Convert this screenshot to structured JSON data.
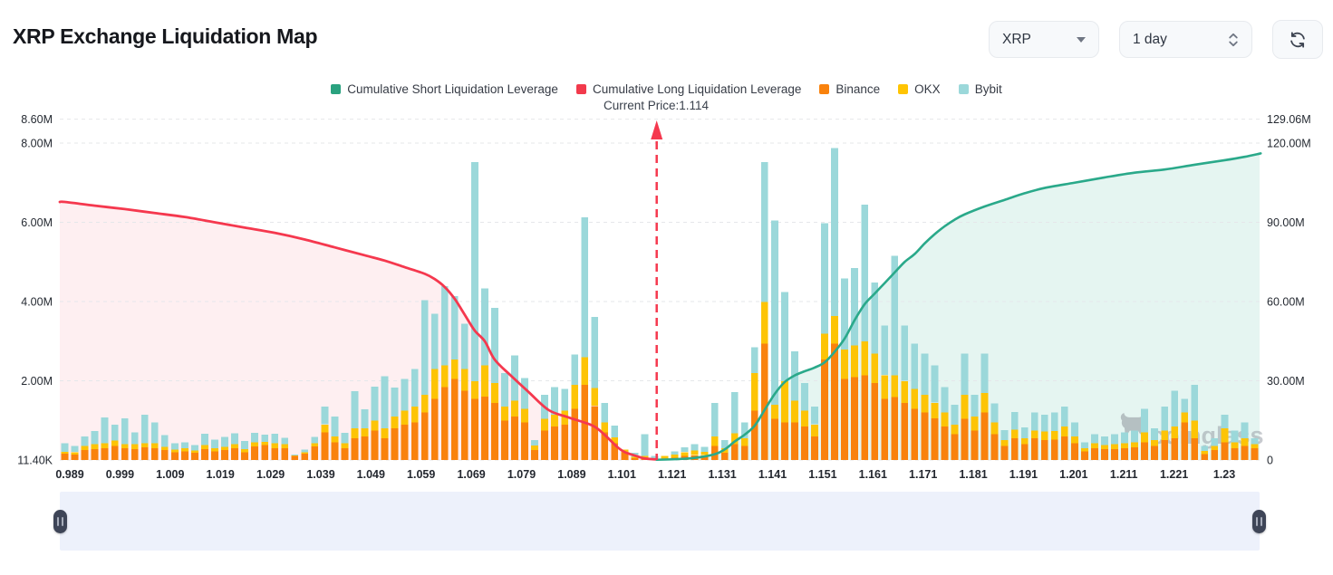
{
  "header": {
    "title": "XRP Exchange Liquidation Map",
    "coin_select": "XRP",
    "interval_select": "1 day"
  },
  "legend": [
    {
      "label": "Cumulative Short Liquidation Leverage",
      "color": "#2aa27f"
    },
    {
      "label": "Cumulative Long Liquidation Leverage",
      "color": "#f23a4c"
    },
    {
      "label": "Binance",
      "color": "#f9820d"
    },
    {
      "label": "OKX",
      "color": "#ffc403"
    },
    {
      "label": "Bybit",
      "color": "#9bd8da"
    }
  ],
  "current_price": {
    "label": "Current Price:1.114",
    "value": 1.114
  },
  "watermark": "coinglass",
  "chart_data": {
    "type": "bar",
    "title": "XRP Exchange Liquidation Map",
    "legend_position": "top",
    "grid": true,
    "x_labels": [
      "0.989",
      "0.999",
      "1.009",
      "1.019",
      "1.029",
      "1.039",
      "1.049",
      "1.059",
      "1.069",
      "1.079",
      "1.089",
      "1.101",
      "1.121",
      "1.131",
      "1.141",
      "1.151",
      "1.161",
      "1.171",
      "1.181",
      "1.191",
      "1.201",
      "1.211",
      "1.221",
      "1.23"
    ],
    "axis_rows": [
      {
        "left": "8.60M",
        "right": "129.06M",
        "right_value": 129.06
      },
      {
        "left": "8.00M",
        "right": "120.00M",
        "right_value": 120
      },
      {
        "left": "6.00M",
        "right": "90.00M",
        "right_value": 90
      },
      {
        "left": "4.00M",
        "right": "60.00M",
        "right_value": 60
      },
      {
        "left": "2.00M",
        "right": "30.00M",
        "right_value": 30
      },
      {
        "left": "11.40K",
        "right": "0",
        "right_value": 0
      }
    ],
    "left_axis_max": 8.6,
    "right_axis_max": 129.06,
    "bar_units": "M",
    "series": [
      {
        "name": "Binance",
        "color": "#f9820d"
      },
      {
        "name": "OKX",
        "color": "#fdc406"
      },
      {
        "name": "Bybit",
        "color": "#9bd8da"
      }
    ],
    "bars": [
      [
        0.16,
        0.05,
        0.21
      ],
      [
        0.14,
        0.06,
        0.15
      ],
      [
        0.25,
        0.1,
        0.25
      ],
      [
        0.28,
        0.12,
        0.33
      ],
      [
        0.3,
        0.12,
        0.66
      ],
      [
        0.35,
        0.14,
        0.4
      ],
      [
        0.3,
        0.1,
        0.65
      ],
      [
        0.28,
        0.12,
        0.3
      ],
      [
        0.32,
        0.1,
        0.73
      ],
      [
        0.3,
        0.12,
        0.53
      ],
      [
        0.25,
        0.08,
        0.3
      ],
      [
        0.2,
        0.06,
        0.16
      ],
      [
        0.22,
        0.08,
        0.15
      ],
      [
        0.18,
        0.06,
        0.14
      ],
      [
        0.28,
        0.1,
        0.28
      ],
      [
        0.22,
        0.08,
        0.22
      ],
      [
        0.25,
        0.08,
        0.25
      ],
      [
        0.3,
        0.1,
        0.28
      ],
      [
        0.2,
        0.08,
        0.2
      ],
      [
        0.35,
        0.1,
        0.24
      ],
      [
        0.38,
        0.08,
        0.18
      ],
      [
        0.3,
        0.12,
        0.24
      ],
      [
        0.3,
        0.1,
        0.16
      ],
      [
        0.1,
        0.02,
        0.02
      ],
      [
        0.16,
        0.04,
        0.06
      ],
      [
        0.35,
        0.08,
        0.16
      ],
      [
        0.7,
        0.2,
        0.45
      ],
      [
        0.45,
        0.15,
        0.5
      ],
      [
        0.3,
        0.12,
        0.27
      ],
      [
        0.55,
        0.25,
        0.94
      ],
      [
        0.6,
        0.2,
        0.48
      ],
      [
        0.75,
        0.25,
        0.86
      ],
      [
        0.55,
        0.25,
        1.32
      ],
      [
        0.8,
        0.3,
        0.74
      ],
      [
        0.9,
        0.35,
        0.8
      ],
      [
        0.95,
        0.4,
        0.95
      ],
      [
        1.2,
        0.45,
        2.4
      ],
      [
        1.55,
        0.75,
        1.4
      ],
      [
        1.85,
        0.55,
        2.0
      ],
      [
        2.05,
        0.5,
        1.6
      ],
      [
        1.75,
        0.55,
        1.15
      ],
      [
        1.55,
        0.45,
        5.55
      ],
      [
        1.6,
        0.8,
        1.95
      ],
      [
        1.45,
        0.5,
        1.9
      ],
      [
        1.0,
        0.35,
        0.85
      ],
      [
        1.1,
        0.4,
        1.15
      ],
      [
        0.95,
        0.35,
        0.78
      ],
      [
        0.25,
        0.12,
        0.13
      ],
      [
        0.75,
        0.3,
        0.6
      ],
      [
        0.85,
        0.3,
        0.7
      ],
      [
        0.9,
        0.35,
        0.55
      ],
      [
        1.3,
        0.6,
        0.77
      ],
      [
        1.9,
        0.7,
        3.55
      ],
      [
        1.37,
        0.45,
        1.8
      ],
      [
        0.7,
        0.25,
        0.5
      ],
      [
        0.42,
        0.15,
        0.3
      ],
      [
        0.2,
        0.06,
        0.0
      ],
      [
        0.05,
        0.03,
        0.1
      ],
      [
        0.05,
        0.05,
        0.55
      ],
      [
        0.02,
        0.02,
        0.06
      ],
      [
        0.03,
        0.07,
        0.0
      ],
      [
        0.06,
        0.08,
        0.08
      ],
      [
        0.1,
        0.1,
        0.12
      ],
      [
        0.12,
        0.12,
        0.16
      ],
      [
        0.12,
        0.09,
        0.12
      ],
      [
        0.35,
        0.25,
        0.84
      ],
      [
        0.18,
        0.12,
        0.2
      ],
      [
        0.4,
        0.28,
        1.04
      ],
      [
        0.35,
        0.2,
        0.4
      ],
      [
        1.25,
        0.95,
        0.65
      ],
      [
        2.95,
        1.05,
        3.55
      ],
      [
        1.05,
        0.35,
        4.67
      ],
      [
        0.95,
        1.05,
        2.25
      ],
      [
        0.95,
        0.55,
        1.25
      ],
      [
        0.85,
        0.4,
        0.7
      ],
      [
        0.6,
        0.3,
        0.45
      ],
      [
        2.55,
        0.65,
        2.8
      ],
      [
        2.95,
        0.7,
        4.25
      ],
      [
        2.05,
        0.75,
        1.8
      ],
      [
        2.1,
        0.8,
        1.96
      ],
      [
        2.15,
        0.85,
        3.47
      ],
      [
        1.95,
        0.75,
        1.8
      ],
      [
        1.55,
        0.6,
        1.25
      ],
      [
        1.6,
        0.55,
        3.02
      ],
      [
        1.45,
        0.55,
        1.4
      ],
      [
        1.3,
        0.5,
        1.15
      ],
      [
        1.2,
        0.45,
        1.05
      ],
      [
        1.05,
        0.4,
        0.95
      ],
      [
        0.85,
        0.35,
        0.65
      ],
      [
        0.65,
        0.25,
        0.5
      ],
      [
        1.05,
        0.6,
        1.05
      ],
      [
        0.75,
        0.35,
        0.55
      ],
      [
        1.2,
        0.5,
        1.0
      ],
      [
        0.65,
        0.3,
        0.48
      ],
      [
        0.35,
        0.15,
        0.26
      ],
      [
        0.55,
        0.22,
        0.45
      ],
      [
        0.4,
        0.15,
        0.28
      ],
      [
        0.55,
        0.2,
        0.45
      ],
      [
        0.5,
        0.22,
        0.43
      ],
      [
        0.52,
        0.22,
        0.46
      ],
      [
        0.6,
        0.25,
        0.5
      ],
      [
        0.42,
        0.18,
        0.35
      ],
      [
        0.22,
        0.08,
        0.15
      ],
      [
        0.3,
        0.12,
        0.23
      ],
      [
        0.28,
        0.1,
        0.22
      ],
      [
        0.28,
        0.12,
        0.25
      ],
      [
        0.3,
        0.12,
        0.28
      ],
      [
        0.32,
        0.13,
        0.3
      ],
      [
        0.45,
        0.25,
        0.6
      ],
      [
        0.35,
        0.15,
        0.3
      ],
      [
        0.5,
        0.25,
        0.6
      ],
      [
        0.55,
        0.3,
        0.9
      ],
      [
        0.95,
        0.25,
        0.35
      ],
      [
        0.55,
        0.45,
        0.9
      ],
      [
        0.15,
        0.08,
        0.12
      ],
      [
        0.25,
        0.1,
        0.2
      ],
      [
        0.45,
        0.35,
        0.35
      ],
      [
        0.3,
        0.15,
        0.3
      ],
      [
        0.35,
        0.2,
        0.4
      ],
      [
        0.3,
        0.1,
        0.15
      ]
    ],
    "long_line": {
      "name": "Cumulative Long Liquidation Leverage",
      "color": "#f5384e",
      "fill": "rgba(245,56,78,0.08)",
      "points": [
        [
          0,
          97.7
        ],
        [
          3,
          96.3
        ],
        [
          6,
          95
        ],
        [
          9,
          93.5
        ],
        [
          12,
          92
        ],
        [
          15,
          90
        ],
        [
          18,
          88
        ],
        [
          21,
          86
        ],
        [
          24,
          83.5
        ],
        [
          27,
          80.5
        ],
        [
          30,
          77.5
        ],
        [
          32,
          75.5
        ],
        [
          34,
          73
        ],
        [
          36,
          70.5
        ],
        [
          37,
          68.5
        ],
        [
          38,
          65.5
        ],
        [
          39,
          61
        ],
        [
          40,
          55
        ],
        [
          41,
          49
        ],
        [
          42,
          45
        ],
        [
          43,
          38
        ],
        [
          44.6,
          32
        ],
        [
          46.4,
          25.7
        ],
        [
          48.4,
          18.9
        ],
        [
          50.4,
          16.1
        ],
        [
          52.8,
          13
        ],
        [
          54,
          9.5
        ],
        [
          55.2,
          5.1
        ],
        [
          56,
          3
        ],
        [
          57,
          1.7
        ],
        [
          58,
          0.6
        ],
        [
          59.2,
          0.2
        ]
      ]
    },
    "short_line": {
      "name": "Cumulative Short Liquidation Leverage",
      "color": "#2aa98a",
      "fill": "rgba(42,169,138,0.12)",
      "points": [
        [
          59.2,
          0.1
        ],
        [
          61,
          0.3
        ],
        [
          63,
          0.8
        ],
        [
          65,
          2.2
        ],
        [
          66,
          4
        ],
        [
          67,
          7
        ],
        [
          68,
          9.6
        ],
        [
          69,
          13
        ],
        [
          70,
          19
        ],
        [
          71,
          25
        ],
        [
          72,
          29.5
        ],
        [
          73,
          32
        ],
        [
          74,
          33.6
        ],
        [
          75,
          35
        ],
        [
          76,
          37
        ],
        [
          77,
          41
        ],
        [
          78,
          46
        ],
        [
          79,
          53
        ],
        [
          80,
          59
        ],
        [
          81,
          63
        ],
        [
          82,
          67
        ],
        [
          83,
          71
        ],
        [
          84,
          75
        ],
        [
          85,
          78
        ],
        [
          86,
          82
        ],
        [
          87,
          85.5
        ],
        [
          88,
          88.5
        ],
        [
          89,
          91
        ],
        [
          90,
          93
        ],
        [
          92,
          96
        ],
        [
          94,
          98.5
        ],
        [
          96,
          101
        ],
        [
          98,
          103
        ],
        [
          101,
          105
        ],
        [
          104,
          107
        ],
        [
          107,
          108.8
        ],
        [
          110,
          110
        ],
        [
          113,
          111.8
        ],
        [
          116,
          113.5
        ],
        [
          118,
          114.8
        ],
        [
          119.5,
          116
        ]
      ]
    },
    "current_price_index": 59.2
  }
}
